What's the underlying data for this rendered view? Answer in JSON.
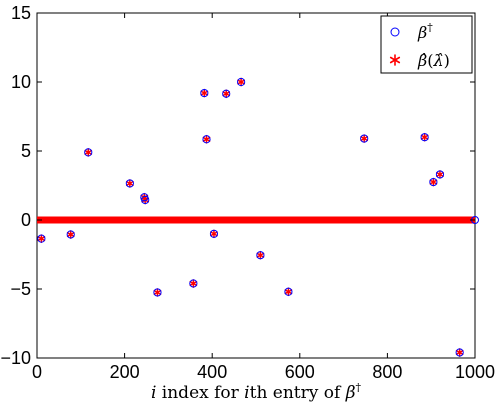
{
  "chart_data": {
    "type": "scatter",
    "title": "",
    "xlabel": "i index for ith entry of β†",
    "ylabel": "",
    "xlim": [
      0,
      1000
    ],
    "ylim": [
      -10,
      15
    ],
    "xticks": [
      0,
      200,
      400,
      600,
      800,
      1000
    ],
    "yticks": [
      -10,
      -5,
      0,
      5,
      10,
      15
    ],
    "xtick_labels": [
      "0",
      "200",
      "400",
      "600",
      "800",
      "1000"
    ],
    "ytick_labels": [
      "−10",
      "−5",
      "0",
      "5",
      "10",
      "15"
    ],
    "grid": false,
    "legend_position": "top-right",
    "series": [
      {
        "name": "β†",
        "marker": "circle",
        "color": "#0000ff",
        "points": [
          [
            10,
            -1.35
          ],
          [
            77,
            -1.05
          ],
          [
            117,
            4.9
          ],
          [
            212,
            2.65
          ],
          [
            245,
            1.65
          ],
          [
            247,
            1.45
          ],
          [
            275,
            -5.25
          ],
          [
            357,
            -4.6
          ],
          [
            382,
            9.2
          ],
          [
            387,
            5.85
          ],
          [
            404,
            -1.0
          ],
          [
            432,
            9.15
          ],
          [
            466,
            10.0
          ],
          [
            510,
            -2.55
          ],
          [
            574,
            -5.2
          ],
          [
            747,
            5.9
          ],
          [
            885,
            6.0
          ],
          [
            905,
            2.75
          ],
          [
            920,
            3.3
          ],
          [
            965,
            -9.6
          ]
        ]
      },
      {
        "name": "β̂(λ̂)",
        "marker": "asterisk",
        "color": "#ff0000",
        "points": [
          [
            10,
            -1.35
          ],
          [
            77,
            -1.05
          ],
          [
            117,
            4.9
          ],
          [
            212,
            2.65
          ],
          [
            245,
            1.65
          ],
          [
            247,
            1.45
          ],
          [
            275,
            -5.25
          ],
          [
            357,
            -4.6
          ],
          [
            382,
            9.2
          ],
          [
            387,
            5.85
          ],
          [
            404,
            -1.0
          ],
          [
            432,
            9.15
          ],
          [
            466,
            10.0
          ],
          [
            510,
            -2.55
          ],
          [
            574,
            -5.2
          ],
          [
            747,
            5.9
          ],
          [
            885,
            6.0
          ],
          [
            905,
            2.75
          ],
          [
            920,
            3.3
          ],
          [
            965,
            -9.6
          ]
        ],
        "zero_band": {
          "x": [
            0,
            1000
          ],
          "y": 0
        }
      }
    ]
  }
}
